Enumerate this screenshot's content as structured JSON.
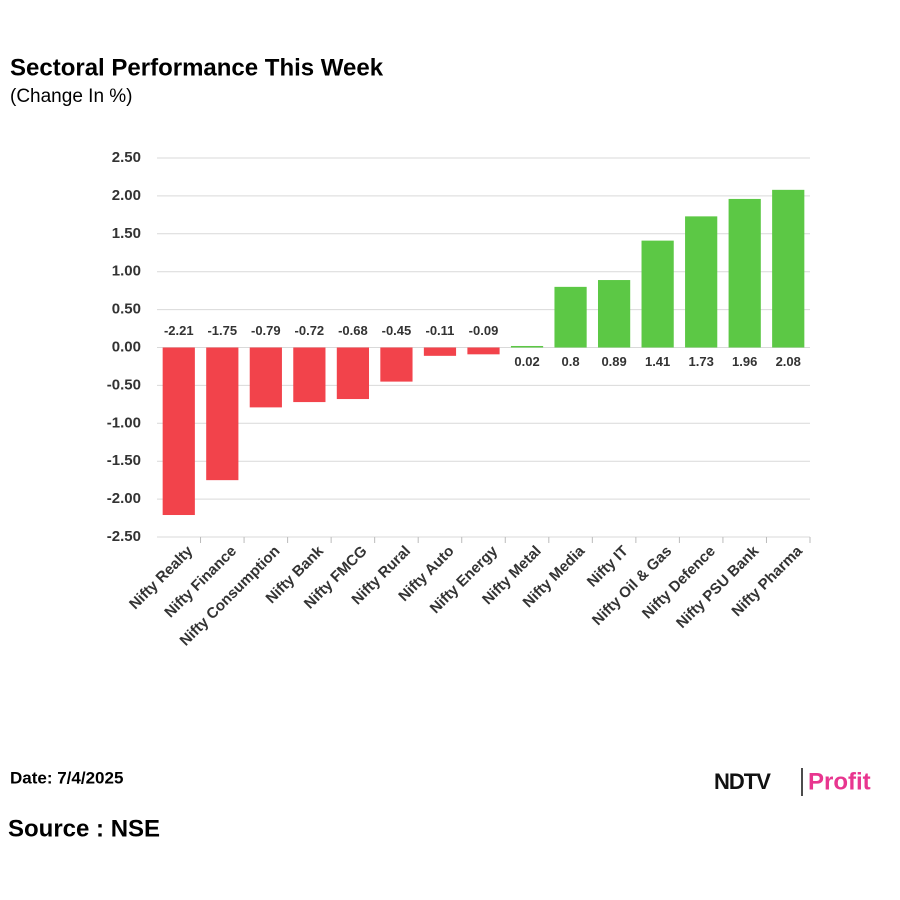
{
  "chart_data": {
    "type": "bar",
    "title": "Sectoral Performance This Week",
    "subtitle": "(Change In %)",
    "categories": [
      "Nifty Realty",
      "Nifty Finance",
      "Nifty Consumption",
      "Nifty Bank",
      "Nifty FMCG",
      "Nifty Rural",
      "Nifty Auto",
      "Nifty Energy",
      "Nifty Metal",
      "Nifty Media",
      "Nifty IT",
      "Nifty Oil & Gas",
      "Nifty Defence",
      "Nifty PSU Bank",
      "Nifty Pharma"
    ],
    "values": [
      -2.21,
      -1.75,
      -0.79,
      -0.72,
      -0.68,
      -0.45,
      -0.11,
      -0.09,
      0.02,
      0.8,
      0.89,
      1.41,
      1.73,
      1.96,
      2.08
    ],
    "positive_color": "#5cc845",
    "negative_color": "#f2434b",
    "ylim": [
      -2.5,
      2.5
    ],
    "yticks": [
      {
        "value": -2.5,
        "label": "-2.50"
      },
      {
        "value": -2,
        "label": "-2.00"
      },
      {
        "value": -1.5,
        "label": "-1.50"
      },
      {
        "value": -1,
        "label": "-1.00"
      },
      {
        "value": -0.5,
        "label": "-0.50"
      },
      {
        "value": 0,
        "label": "0.00"
      },
      {
        "value": 0.5,
        "label": "0.50"
      },
      {
        "value": 1,
        "label": "1.00"
      },
      {
        "value": 1.5,
        "label": "1.50"
      },
      {
        "value": 2,
        "label": "2.00"
      },
      {
        "value": 2.5,
        "label": "2.50"
      }
    ],
    "grid": true,
    "date": "Date: 7/4/2025",
    "source": "Source : NSE",
    "logo": {
      "brand": "NDTV",
      "product": "Profit"
    }
  }
}
